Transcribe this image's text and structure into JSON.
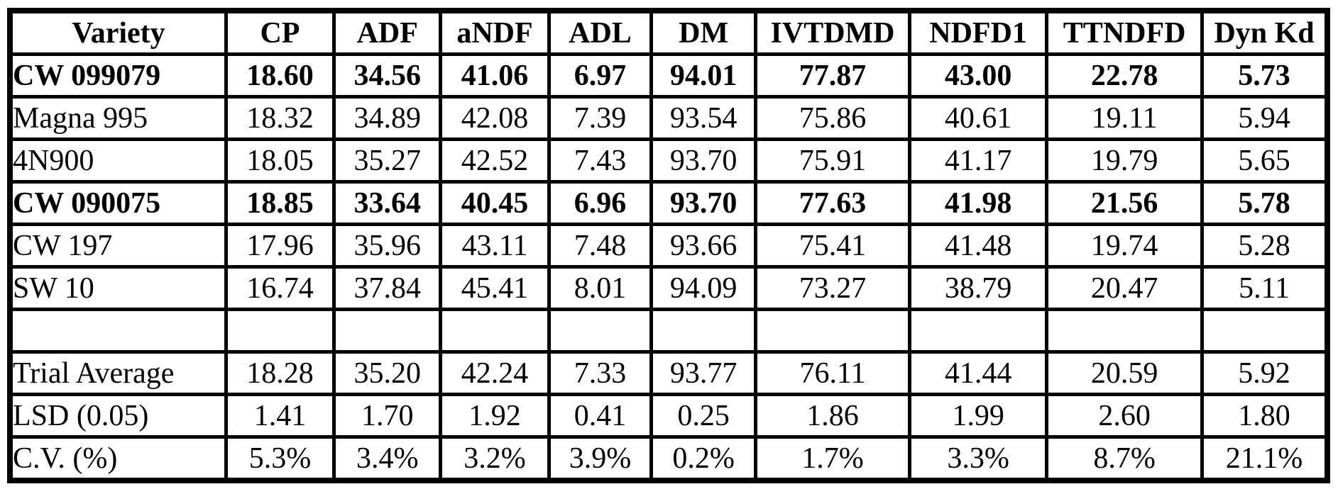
{
  "table": {
    "border_color": "#000000",
    "background_color": "#ffffff",
    "columns": [
      "Variety",
      "CP",
      "ADF",
      "aNDF",
      "ADL",
      "DM",
      "IVTDMD",
      "NDFD1",
      "TTNDFD",
      "Dyn Kd"
    ],
    "rows": [
      {
        "variety": "CW 099079",
        "bold": true,
        "values": [
          "18.60",
          "34.56",
          "41.06",
          "6.97",
          "94.01",
          "77.87",
          "43.00",
          "22.78",
          "5.73"
        ]
      },
      {
        "variety": "Magna 995",
        "bold": false,
        "values": [
          "18.32",
          "34.89",
          "42.08",
          "7.39",
          "93.54",
          "75.86",
          "40.61",
          "19.11",
          "5.94"
        ]
      },
      {
        "variety": "4N900",
        "bold": false,
        "values": [
          "18.05",
          "35.27",
          "42.52",
          "7.43",
          "93.70",
          "75.91",
          "41.17",
          "19.79",
          "5.65"
        ]
      },
      {
        "variety": "CW 090075",
        "bold": true,
        "values": [
          "18.85",
          "33.64",
          "40.45",
          "6.96",
          "93.70",
          "77.63",
          "41.98",
          "21.56",
          "5.78"
        ]
      },
      {
        "variety": "CW 197",
        "bold": false,
        "values": [
          "17.96",
          "35.96",
          "43.11",
          "7.48",
          "93.66",
          "75.41",
          "41.48",
          "19.74",
          "5.28"
        ]
      },
      {
        "variety": "SW 10",
        "bold": false,
        "values": [
          "16.74",
          "37.84",
          "45.41",
          "8.01",
          "94.09",
          "73.27",
          "38.79",
          "20.47",
          "5.11"
        ]
      },
      {
        "variety": "",
        "bold": false,
        "values": [
          "",
          "",
          "",
          "",
          "",
          "",
          "",
          "",
          ""
        ]
      },
      {
        "variety": "Trial Average",
        "bold": false,
        "values": [
          "18.28",
          "35.20",
          "42.24",
          "7.33",
          "93.77",
          "76.11",
          "41.44",
          "20.59",
          "5.92"
        ]
      },
      {
        "variety": "LSD (0.05)",
        "bold": false,
        "values": [
          "1.41",
          "1.70",
          "1.92",
          "0.41",
          "0.25",
          "1.86",
          "1.99",
          "2.60",
          "1.80"
        ]
      },
      {
        "variety": "C.V. (%)",
        "bold": false,
        "values": [
          "5.3%",
          "3.4%",
          "3.2%",
          "3.9%",
          "0.2%",
          "1.7%",
          "3.3%",
          "8.7%",
          "21.1%"
        ]
      }
    ]
  }
}
